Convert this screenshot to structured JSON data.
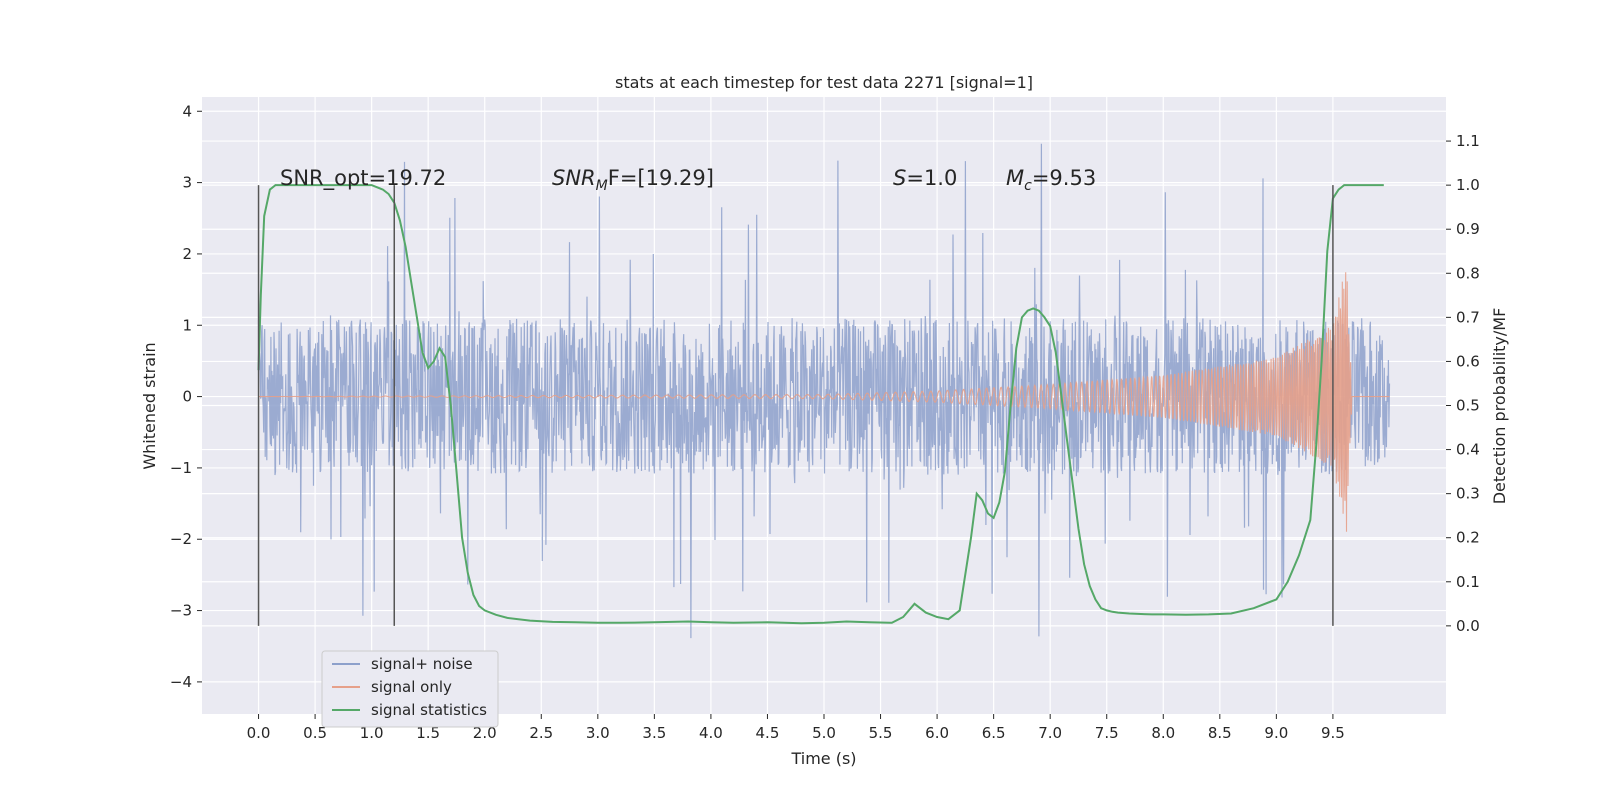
{
  "chart_data": {
    "type": "line",
    "title": "stats at each timestep for test data 2271 [signal=1]",
    "xlabel": "Time (s)",
    "ylabel": "Whitened strain",
    "ylabel_right": "Detection probability/MF",
    "xlim": [
      -0.5,
      10.5
    ],
    "ylim": [
      -4.45,
      4.2
    ],
    "ylim_right": [
      -0.2,
      1.2
    ],
    "x_ticks": [
      "0.0",
      "0.5",
      "1.0",
      "1.5",
      "2.0",
      "2.5",
      "3.0",
      "3.5",
      "4.0",
      "4.5",
      "5.0",
      "5.5",
      "6.0",
      "6.5",
      "7.0",
      "7.5",
      "8.0",
      "8.5",
      "9.0",
      "9.5"
    ],
    "y_ticks": [
      "4",
      "3",
      "2",
      "1",
      "0",
      "−1",
      "−2",
      "−3",
      "−4"
    ],
    "y_ticks_right": [
      "1.1",
      "1.0",
      "0.9",
      "0.8",
      "0.7",
      "0.6",
      "0.5",
      "0.4",
      "0.3",
      "0.2",
      "0.1",
      "0.0"
    ],
    "grid": true,
    "legend_position": "lower-left",
    "annotations": [
      {
        "text": "SNR_opt=19.72"
      },
      {
        "text": "SNR",
        "sub": "M",
        "rest": "F=[19.29]"
      },
      {
        "text": "S",
        "rest": "=1.0"
      },
      {
        "text": "M",
        "sub": "c",
        "rest": "=9.53"
      }
    ],
    "vertical_markers": [
      0.0,
      1.2,
      9.5
    ],
    "series": [
      {
        "name": "signal+ noise",
        "color": "#8da0cb",
        "x_range": [
          0.0,
          10.0
        ],
        "envelope": {
          "core": 1.1,
          "peak": 3.8,
          "min": -4.05
        }
      },
      {
        "name": "signal only",
        "color": "#e6a08a",
        "x_range": [
          0.0,
          10.0
        ],
        "amplitude_at": [
          [
            0.0,
            0.0
          ],
          [
            5.0,
            0.03
          ],
          [
            6.0,
            0.08
          ],
          [
            7.0,
            0.17
          ],
          [
            8.0,
            0.3
          ],
          [
            9.0,
            0.55
          ],
          [
            9.5,
            1.0
          ],
          [
            9.62,
            1.9
          ],
          [
            9.67,
            0.0
          ],
          [
            10.0,
            0.0
          ]
        ]
      },
      {
        "name": "signal statistics",
        "color": "#55a868",
        "x": [
          0.0,
          0.02,
          0.05,
          0.1,
          0.15,
          0.25,
          0.4,
          0.6,
          0.8,
          1.0,
          1.1,
          1.15,
          1.2,
          1.25,
          1.3,
          1.35,
          1.4,
          1.45,
          1.5,
          1.55,
          1.6,
          1.65,
          1.7,
          1.75,
          1.8,
          1.85,
          1.9,
          1.95,
          2.0,
          2.1,
          2.2,
          2.4,
          2.6,
          2.8,
          3.0,
          3.2,
          3.5,
          3.8,
          4.0,
          4.2,
          4.5,
          4.8,
          5.0,
          5.2,
          5.4,
          5.6,
          5.7,
          5.8,
          5.9,
          6.0,
          6.1,
          6.2,
          6.3,
          6.35,
          6.4,
          6.45,
          6.5,
          6.55,
          6.6,
          6.65,
          6.7,
          6.75,
          6.8,
          6.85,
          6.9,
          6.95,
          7.0,
          7.05,
          7.1,
          7.15,
          7.2,
          7.25,
          7.3,
          7.35,
          7.4,
          7.45,
          7.5,
          7.55,
          7.6,
          7.7,
          7.8,
          7.9,
          8.0,
          8.2,
          8.4,
          8.6,
          8.8,
          9.0,
          9.1,
          9.2,
          9.3,
          9.35,
          9.4,
          9.45,
          9.5,
          9.55,
          9.6,
          9.7,
          9.8,
          9.9,
          9.95
        ],
        "values": [
          0.58,
          0.75,
          0.93,
          0.99,
          1.0,
          1.0,
          1.0,
          1.0,
          1.0,
          1.0,
          0.99,
          0.98,
          0.96,
          0.92,
          0.86,
          0.78,
          0.7,
          0.62,
          0.585,
          0.6,
          0.63,
          0.61,
          0.5,
          0.35,
          0.2,
          0.12,
          0.07,
          0.045,
          0.035,
          0.025,
          0.018,
          0.012,
          0.009,
          0.008,
          0.007,
          0.007,
          0.008,
          0.01,
          0.008,
          0.007,
          0.008,
          0.006,
          0.007,
          0.01,
          0.008,
          0.007,
          0.02,
          0.05,
          0.03,
          0.02,
          0.015,
          0.035,
          0.2,
          0.3,
          0.285,
          0.255,
          0.245,
          0.28,
          0.35,
          0.5,
          0.63,
          0.7,
          0.715,
          0.72,
          0.715,
          0.7,
          0.68,
          0.62,
          0.52,
          0.42,
          0.32,
          0.22,
          0.14,
          0.09,
          0.06,
          0.04,
          0.035,
          0.032,
          0.03,
          0.028,
          0.027,
          0.026,
          0.026,
          0.025,
          0.026,
          0.028,
          0.04,
          0.06,
          0.1,
          0.16,
          0.24,
          0.4,
          0.6,
          0.85,
          0.97,
          0.99,
          1.0,
          1.0,
          1.0,
          1.0,
          1.0
        ]
      }
    ]
  }
}
